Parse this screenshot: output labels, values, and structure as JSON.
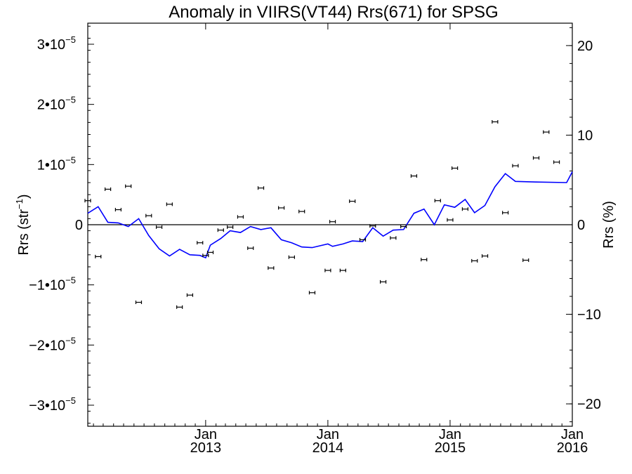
{
  "chart_data": {
    "type": "scatter",
    "title": "Anomaly in VIIRS(VT44) Rrs(671) for SPSG",
    "ylabel_left": "Rrs (str",
    "ylabel_left_sup": "−1",
    "ylabel_left_close": ")",
    "ylabel_right": "Rrs (%)",
    "x_range": [
      "2012-01-15",
      "2016-01-01"
    ],
    "ylim_left": [
      -3.35e-05,
      3.35e-05
    ],
    "ylim_right": [
      -22.5,
      22.5
    ],
    "y_left_ticks": [
      {
        "value": 3e-05,
        "mant": "3•10",
        "exp": "−5"
      },
      {
        "value": 2e-05,
        "mant": "2•10",
        "exp": "−5"
      },
      {
        "value": 1e-05,
        "mant": "1•10",
        "exp": "−5"
      },
      {
        "value": 0,
        "mant": "0",
        "exp": ""
      },
      {
        "value": -1e-05,
        "mant": "−1•10",
        "exp": "−5"
      },
      {
        "value": -2e-05,
        "mant": "−2•10",
        "exp": "−5"
      },
      {
        "value": -3e-05,
        "mant": "−3•10",
        "exp": "−5"
      }
    ],
    "y_right_ticks": [
      {
        "value": 20,
        "label": "20"
      },
      {
        "value": 10,
        "label": "10"
      },
      {
        "value": 0,
        "label": "0"
      },
      {
        "value": -10,
        "label": "−10"
      },
      {
        "value": -20,
        "label": "−20"
      }
    ],
    "x_ticks": [
      {
        "date": "2013-01-01",
        "month": "Jan",
        "year": "2013"
      },
      {
        "date": "2014-01-01",
        "month": "Jan",
        "year": "2014"
      },
      {
        "date": "2015-01-01",
        "month": "Jan",
        "year": "2015"
      },
      {
        "date": "2016-01-01",
        "month": "Jan",
        "year": "2016"
      }
    ],
    "series": [
      {
        "kind": "points_with_errorbars",
        "color": "#000000",
        "points": [
          {
            "date": "2012-01-15",
            "y": 4e-06
          },
          {
            "date": "2012-02-15",
            "y": -5.3e-06
          },
          {
            "date": "2012-03-15",
            "y": 5.9e-06
          },
          {
            "date": "2012-04-15",
            "y": 2.5e-06
          },
          {
            "date": "2012-05-15",
            "y": 6.4e-06
          },
          {
            "date": "2012-06-15",
            "y": -1.29e-05
          },
          {
            "date": "2012-07-15",
            "y": 1.5e-06
          },
          {
            "date": "2012-08-15",
            "y": -4e-07
          },
          {
            "date": "2012-09-15",
            "y": 3.4e-06
          },
          {
            "date": "2012-10-15",
            "y": -1.37e-05
          },
          {
            "date": "2012-11-15",
            "y": -1.17e-05
          },
          {
            "date": "2012-12-15",
            "y": -3e-06
          },
          {
            "date": "2013-01-01",
            "y": -5.1e-06
          },
          {
            "date": "2013-01-15",
            "y": -4.6e-06
          },
          {
            "date": "2013-02-15",
            "y": -9e-07
          },
          {
            "date": "2013-03-15",
            "y": -4e-07
          },
          {
            "date": "2013-04-15",
            "y": 1.3e-06
          },
          {
            "date": "2013-05-15",
            "y": -3.9e-06
          },
          {
            "date": "2013-06-15",
            "y": 6.1e-06
          },
          {
            "date": "2013-07-15",
            "y": -7.2e-06
          },
          {
            "date": "2013-08-15",
            "y": 2.8e-06
          },
          {
            "date": "2013-09-15",
            "y": -5.4e-06
          },
          {
            "date": "2013-10-15",
            "y": 2.2e-06
          },
          {
            "date": "2013-11-15",
            "y": -1.13e-05
          },
          {
            "date": "2014-01-01",
            "y": -7.6e-06
          },
          {
            "date": "2014-01-15",
            "y": 5e-07
          },
          {
            "date": "2014-02-15",
            "y": -7.6e-06
          },
          {
            "date": "2014-03-15",
            "y": 3.9e-06
          },
          {
            "date": "2014-04-15",
            "y": -2.5e-06
          },
          {
            "date": "2014-05-15",
            "y": -2e-07
          },
          {
            "date": "2014-06-15",
            "y": -9.5e-06
          },
          {
            "date": "2014-07-15",
            "y": -2.2e-06
          },
          {
            "date": "2014-08-15",
            "y": -3e-07
          },
          {
            "date": "2014-09-15",
            "y": 8.1e-06
          },
          {
            "date": "2014-10-15",
            "y": -5.8e-06
          },
          {
            "date": "2014-11-25",
            "y": 4e-06
          },
          {
            "date": "2015-01-01",
            "y": 8e-07
          },
          {
            "date": "2015-01-15",
            "y": 9.4e-06
          },
          {
            "date": "2015-02-15",
            "y": 2.6e-06
          },
          {
            "date": "2015-03-15",
            "y": -6e-06
          },
          {
            "date": "2015-04-15",
            "y": -5.2e-06
          },
          {
            "date": "2015-05-15",
            "y": 1.71e-05
          },
          {
            "date": "2015-06-15",
            "y": 2e-06
          },
          {
            "date": "2015-07-15",
            "y": 9.8e-06
          },
          {
            "date": "2015-08-15",
            "y": -5.9e-06
          },
          {
            "date": "2015-09-15",
            "y": 1.11e-05
          },
          {
            "date": "2015-10-15",
            "y": 1.54e-05
          },
          {
            "date": "2015-11-15",
            "y": 1.04e-05
          }
        ]
      },
      {
        "kind": "line",
        "color": "#0000ff",
        "points": [
          {
            "date": "2012-01-15",
            "y": 1.9e-06
          },
          {
            "date": "2012-02-15",
            "y": 3e-06
          },
          {
            "date": "2012-03-15",
            "y": 4e-07
          },
          {
            "date": "2012-04-15",
            "y": 3e-07
          },
          {
            "date": "2012-05-15",
            "y": -3e-07
          },
          {
            "date": "2012-06-15",
            "y": 1e-06
          },
          {
            "date": "2012-07-15",
            "y": -1.8e-06
          },
          {
            "date": "2012-08-15",
            "y": -4e-06
          },
          {
            "date": "2012-09-15",
            "y": -5.2e-06
          },
          {
            "date": "2012-10-15",
            "y": -4.1e-06
          },
          {
            "date": "2012-11-15",
            "y": -5e-06
          },
          {
            "date": "2012-12-15",
            "y": -5.1e-06
          },
          {
            "date": "2013-01-01",
            "y": -5.5e-06
          },
          {
            "date": "2013-01-15",
            "y": -3.4e-06
          },
          {
            "date": "2013-02-15",
            "y": -2.3e-06
          },
          {
            "date": "2013-03-15",
            "y": -1e-06
          },
          {
            "date": "2013-04-15",
            "y": -1.3e-06
          },
          {
            "date": "2013-05-15",
            "y": -3e-07
          },
          {
            "date": "2013-06-15",
            "y": -8e-07
          },
          {
            "date": "2013-07-15",
            "y": -5e-07
          },
          {
            "date": "2013-08-15",
            "y": -2.5e-06
          },
          {
            "date": "2013-09-15",
            "y": -3e-06
          },
          {
            "date": "2013-10-15",
            "y": -3.7e-06
          },
          {
            "date": "2013-11-15",
            "y": -3.8e-06
          },
          {
            "date": "2014-01-01",
            "y": -3.2e-06
          },
          {
            "date": "2014-01-15",
            "y": -3.6e-06
          },
          {
            "date": "2014-02-15",
            "y": -3.2e-06
          },
          {
            "date": "2014-03-15",
            "y": -2.7e-06
          },
          {
            "date": "2014-04-15",
            "y": -2.8e-06
          },
          {
            "date": "2014-05-15",
            "y": -5e-07
          },
          {
            "date": "2014-06-15",
            "y": -1.9e-06
          },
          {
            "date": "2014-07-15",
            "y": -9e-07
          },
          {
            "date": "2014-08-15",
            "y": -8e-07
          },
          {
            "date": "2014-09-15",
            "y": 1.9e-06
          },
          {
            "date": "2014-10-15",
            "y": 2.6e-06
          },
          {
            "date": "2014-11-15",
            "y": 0.0
          },
          {
            "date": "2014-12-15",
            "y": 3.3e-06
          },
          {
            "date": "2015-01-15",
            "y": 2.9e-06
          },
          {
            "date": "2015-02-15",
            "y": 4.2e-06
          },
          {
            "date": "2015-03-15",
            "y": 2e-06
          },
          {
            "date": "2015-04-15",
            "y": 3.2e-06
          },
          {
            "date": "2015-05-15",
            "y": 6.3e-06
          },
          {
            "date": "2015-06-15",
            "y": 8.5e-06
          },
          {
            "date": "2015-07-15",
            "y": 7.2e-06
          },
          {
            "date": "2015-09-15",
            "y": 7.1e-06
          },
          {
            "date": "2015-12-15",
            "y": 7e-06
          },
          {
            "date": "2016-01-01",
            "y": 8.8e-06
          }
        ]
      }
    ]
  }
}
